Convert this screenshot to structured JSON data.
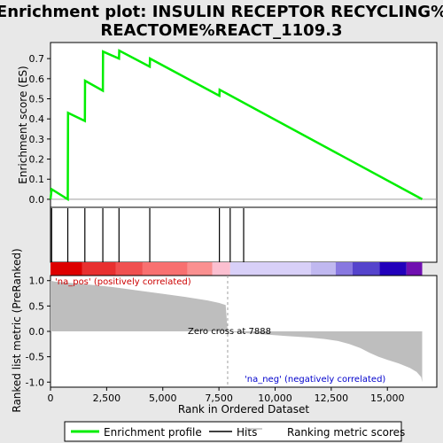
{
  "title_line1": "Enrichment plot: INSULIN RECEPTOR RECYCLING%",
  "title_line2": "REACTOME%REACT_1109.3",
  "colors": {
    "es_line": "#00ee00",
    "hit": "#000000",
    "metric_fill": "#bebebe",
    "pos_label": "#cc0000",
    "neg_label": "#0000cc",
    "zero_line": "#a0a0a0"
  },
  "chart_data": [
    {
      "type": "line",
      "panel": "enrichment-score",
      "ylabel": "Enrichment score (ES)",
      "xlim": [
        0,
        17200
      ],
      "ylim": [
        -0.04,
        0.78
      ],
      "yticks": [
        0.0,
        0.1,
        0.2,
        0.3,
        0.4,
        0.5,
        0.6,
        0.7
      ],
      "ytick_labels": [
        "0.0",
        "0.1",
        "0.2",
        "0.3",
        "0.4",
        "0.5",
        "0.6",
        "0.7"
      ],
      "series": [
        {
          "x": [
            0,
            50,
            770,
            780,
            1530,
            1540,
            2330,
            2340,
            3050,
            3060,
            4420,
            4430,
            7520,
            7530,
            16550
          ],
          "y": [
            0.0,
            0.05,
            0.0,
            0.43,
            0.39,
            0.59,
            0.54,
            0.735,
            0.7,
            0.74,
            0.66,
            0.7,
            0.515,
            0.545,
            0.0
          ]
        }
      ]
    },
    {
      "type": "bar",
      "panel": "hits",
      "hits": [
        50,
        770,
        1530,
        2330,
        3050,
        4420,
        7520,
        8000,
        8600
      ],
      "heat_colors": [
        "#dd0000",
        "#e83030",
        "#f05050",
        "#f87070",
        "#fa9090",
        "#fbbfd0",
        "#d8d0f8",
        "#c0b8f0",
        "#8878e0",
        "#5544cc",
        "#2200bb",
        "#7010b0"
      ],
      "heat_stops": [
        0,
        1400,
        2900,
        4100,
        6100,
        7200,
        8000,
        11600,
        12700,
        13450,
        14650,
        15850,
        16550
      ]
    },
    {
      "type": "area",
      "panel": "ranked-metric",
      "ylabel": "Ranked list metric (PreRanked)",
      "xlabel": "Rank in Ordered Dataset",
      "xlim": [
        0,
        17200
      ],
      "ylim": [
        -1.1,
        1.1
      ],
      "xticks": [
        0,
        2500,
        5000,
        7500,
        10000,
        12500,
        15000
      ],
      "xtick_labels": [
        "0",
        "2,500",
        "5,000",
        "7,500",
        "10,000",
        "12,500",
        "15,000"
      ],
      "yticks": [
        -1.0,
        -0.5,
        0.0,
        0.5,
        1.0
      ],
      "ytick_labels": [
        "-1.0",
        "-0.5",
        "0.0",
        "0.5",
        "1.0"
      ],
      "x": [
        0,
        200,
        1000,
        2000,
        3000,
        4000,
        5000,
        6000,
        7000,
        7500,
        7800,
        7888,
        8500,
        9500,
        10500,
        11500,
        12200,
        12800,
        13300,
        13800,
        14200,
        14600,
        15000,
        15500,
        16000,
        16300,
        16500,
        16550
      ],
      "y": [
        1.0,
        0.98,
        0.95,
        0.91,
        0.86,
        0.8,
        0.74,
        0.68,
        0.61,
        0.56,
        0.52,
        0.0,
        -0.03,
        -0.06,
        -0.09,
        -0.12,
        -0.15,
        -0.19,
        -0.25,
        -0.33,
        -0.42,
        -0.5,
        -0.56,
        -0.63,
        -0.72,
        -0.8,
        -0.9,
        -1.0
      ],
      "annotations": {
        "pos": "'na_pos' (positively correlated)",
        "neg": "'na_neg' (negatively correlated)",
        "zero": "Zero cross at 7888"
      },
      "zero_cross": 7888
    }
  ],
  "legend": {
    "items": [
      {
        "label": "Enrichment profile"
      },
      {
        "label": "Hits"
      },
      {
        "label": "Ranking metric scores"
      }
    ]
  }
}
